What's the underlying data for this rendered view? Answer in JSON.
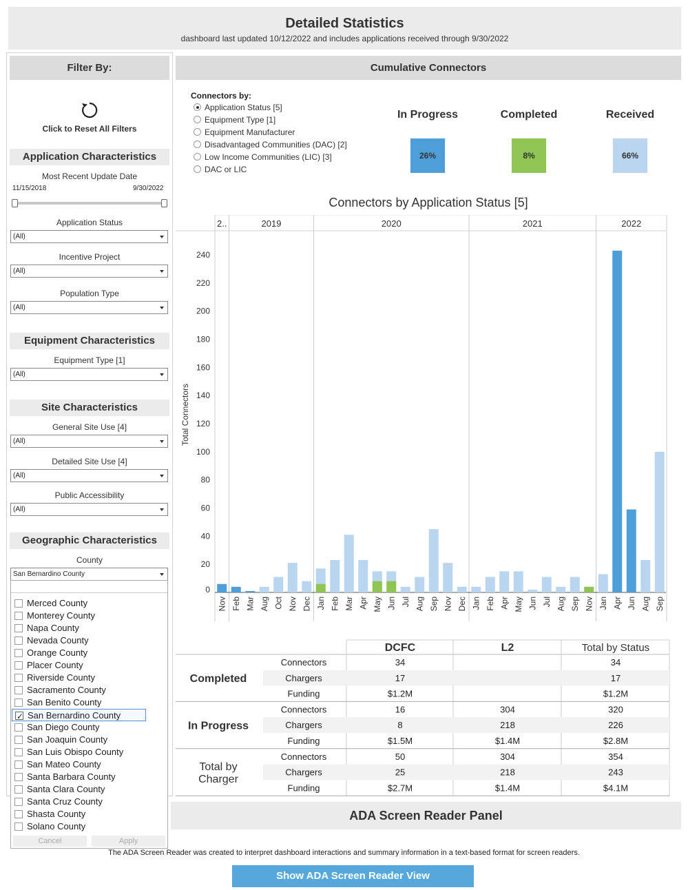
{
  "header": {
    "title": "Detailed Statistics",
    "subtitle": "dashboard last updated 10/12/2022 and includes applications received through 9/30/2022"
  },
  "sidebar": {
    "filter_title": "Filter By:",
    "reset_label": "Click to Reset All Filters",
    "sections": {
      "application": "Application Characteristics",
      "equipment": "Equipment Characteristics",
      "site": "Site Characteristics",
      "geographic": "Geographic Characteristics"
    },
    "date_filter": {
      "label": "Most Recent Update Date",
      "min": "11/15/2018",
      "max": "9/30/2022"
    },
    "filters": {
      "application_status": {
        "label": "Application Status",
        "value": "(All)"
      },
      "incentive_project": {
        "label": "Incentive Project",
        "value": "(All)"
      },
      "population_type": {
        "label": "Population Type",
        "value": "(All)"
      },
      "equipment_type": {
        "label": "Equipment Type [1]",
        "value": "(All)"
      },
      "general_site_use": {
        "label": "General Site Use [4]",
        "value": "(All)"
      },
      "detailed_site_use": {
        "label": "Detailed Site Use [4]",
        "value": "(All)"
      },
      "public_accessibility": {
        "label": "Public Accessibility",
        "value": "(All)"
      },
      "county": {
        "label": "County",
        "value": "San Bernardino County"
      }
    },
    "county_options": [
      {
        "name": "Merced County",
        "checked": false
      },
      {
        "name": "Monterey County",
        "checked": false
      },
      {
        "name": "Napa County",
        "checked": false
      },
      {
        "name": "Nevada County",
        "checked": false
      },
      {
        "name": "Orange County",
        "checked": false
      },
      {
        "name": "Placer County",
        "checked": false
      },
      {
        "name": "Riverside County",
        "checked": false
      },
      {
        "name": "Sacramento County",
        "checked": false
      },
      {
        "name": "San Benito County",
        "checked": false
      },
      {
        "name": "San Bernardino County",
        "checked": true
      },
      {
        "name": "San Diego County",
        "checked": false
      },
      {
        "name": "San Joaquin County",
        "checked": false
      },
      {
        "name": "San Luis Obispo County",
        "checked": false
      },
      {
        "name": "San Mateo County",
        "checked": false
      },
      {
        "name": "Santa Barbara County",
        "checked": false
      },
      {
        "name": "Santa Clara County",
        "checked": false
      },
      {
        "name": "Santa Cruz County",
        "checked": false
      },
      {
        "name": "Shasta County",
        "checked": false
      },
      {
        "name": "Solano County",
        "checked": false
      }
    ],
    "cancel_label": "Cancel",
    "apply_label": "Apply"
  },
  "panel": {
    "title": "Cumulative Connectors",
    "connectors_by_label": "Connectors by:",
    "options": [
      {
        "label": "Application Status [5]",
        "selected": true
      },
      {
        "label": "Equipment Type [1]",
        "selected": false
      },
      {
        "label": "Equipment Manufacturer",
        "selected": false
      },
      {
        "label": "Disadvantaged Communities (DAC) [2]",
        "selected": false
      },
      {
        "label": "Low Income Communities (LIC) [3]",
        "selected": false
      },
      {
        "label": "DAC or LIC",
        "selected": false
      }
    ],
    "kpis": [
      {
        "label": "In Progress",
        "value": "26%",
        "color": "#4e9fd9"
      },
      {
        "label": "Completed",
        "value": "8%",
        "color": "#8fc552"
      },
      {
        "label": "Received",
        "value": "66%",
        "color": "#b9d5f0"
      }
    ]
  },
  "colors": {
    "in_progress": "#4e9fd9",
    "completed": "#8fc552",
    "received": "#b9d5f0"
  },
  "chart_data": {
    "type": "bar",
    "title": "Connectors by Application Status [5]",
    "ylabel": "Total Connectors",
    "ylim": [
      0,
      250
    ],
    "yticks": [
      0,
      20,
      40,
      60,
      80,
      100,
      120,
      140,
      160,
      180,
      200,
      220,
      240
    ],
    "years": [
      {
        "label": "2..",
        "months": 1
      },
      {
        "label": "2019",
        "months": 6
      },
      {
        "label": "2020",
        "months": 11
      },
      {
        "label": "2021",
        "months": 9
      },
      {
        "label": "2022",
        "months": 5
      }
    ],
    "categories": [
      "Nov",
      "Feb",
      "Mar",
      "Aug",
      "Oct",
      "Nov",
      "Dec",
      "Jan",
      "Feb",
      "Mar",
      "Apr",
      "May",
      "Jun",
      "Jul",
      "Aug",
      "Sep",
      "Nov",
      "Dec",
      "Jan",
      "Feb",
      "Apr",
      "May",
      "Jun",
      "Jul",
      "Aug",
      "Sep",
      "Nov",
      "Jan",
      "Apr",
      "Jun",
      "Aug",
      "Sep"
    ],
    "values": [
      6,
      4,
      1,
      4,
      11,
      21,
      8,
      17,
      23,
      41,
      23,
      15,
      15,
      4,
      11,
      45,
      21,
      4,
      4,
      11,
      15,
      15,
      2,
      11,
      4,
      11,
      4,
      13,
      243,
      59,
      23,
      100
    ],
    "status": [
      "in_progress",
      "in_progress",
      "in_progress",
      "received",
      "received",
      "received",
      "received",
      "received",
      "received",
      "received",
      "received",
      "received",
      "received",
      "received",
      "received",
      "received",
      "received",
      "received",
      "received",
      "received",
      "received",
      "received",
      "received",
      "received",
      "received",
      "received",
      "received",
      "received",
      "in_progress",
      "in_progress",
      "received",
      "received"
    ],
    "completed_overlay": [
      0,
      0,
      0,
      0,
      0,
      0,
      0,
      6,
      0,
      0,
      0,
      8,
      8,
      0,
      0,
      0,
      0,
      0,
      0,
      0,
      0,
      0,
      0,
      0,
      0,
      0,
      4,
      0,
      0,
      0,
      0,
      0
    ]
  },
  "summary_table": {
    "col_headers": [
      "DCFC",
      "L2",
      "Total by Status"
    ],
    "groups": [
      {
        "name": "Completed",
        "rows": [
          {
            "metric": "Connectors",
            "dcfc": "34",
            "l2": "",
            "total": "34"
          },
          {
            "metric": "Chargers",
            "dcfc": "17",
            "l2": "",
            "total": "17"
          },
          {
            "metric": "Funding",
            "dcfc": "$1.2M",
            "l2": "",
            "total": "$1.2M"
          }
        ]
      },
      {
        "name": "In Progress",
        "rows": [
          {
            "metric": "Connectors",
            "dcfc": "16",
            "l2": "304",
            "total": "320"
          },
          {
            "metric": "Chargers",
            "dcfc": "8",
            "l2": "218",
            "total": "226"
          },
          {
            "metric": "Funding",
            "dcfc": "$1.5M",
            "l2": "$1.4M",
            "total": "$2.8M"
          }
        ]
      },
      {
        "name_line1": "Total by",
        "name_line2": "Charger",
        "rows": [
          {
            "metric": "Connectors",
            "dcfc": "50",
            "l2": "304",
            "total": "354"
          },
          {
            "metric": "Chargers",
            "dcfc": "25",
            "l2": "218",
            "total": "243"
          },
          {
            "metric": "Funding",
            "dcfc": "$2.7M",
            "l2": "$1.4M",
            "total": "$4.1M"
          }
        ]
      }
    ]
  },
  "ada": {
    "title": "ADA Screen Reader Panel",
    "description": "The ADA Screen Reader was created to interpret dashboard interactions and summary information in a text-based format for screen readers.",
    "button_label": "Show ADA Screen Reader View"
  }
}
